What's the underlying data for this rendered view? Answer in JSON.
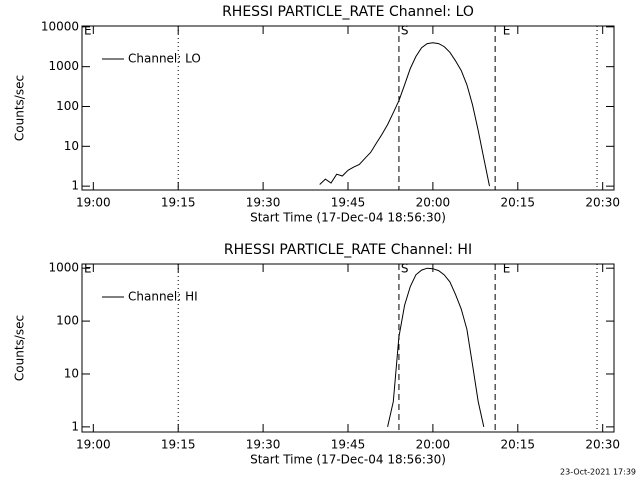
{
  "chart_data": [
    {
      "type": "line",
      "title": "RHESSI PARTICLE_RATE Channel: LO",
      "x_label": "Start Time (17-Dec-04 18:56:30)",
      "y_label": "Counts/sec",
      "log_y": true,
      "legend": "top-left",
      "xlim": [
        "18:58",
        "20:32"
      ],
      "xticks": [
        "19:00",
        "19:15",
        "19:30",
        "19:45",
        "20:00",
        "20:15",
        "20:30"
      ],
      "ylim": [
        0.8,
        10500
      ],
      "yticks": [
        1,
        10,
        100,
        1000,
        10000
      ],
      "x": [
        "19:40",
        "19:41",
        "19:42",
        "19:43",
        "19:44",
        "19:45",
        "19:46",
        "19:47",
        "19:48",
        "19:49",
        "19:50",
        "19:51",
        "19:52",
        "19:53",
        "19:54",
        "19:55",
        "19:56",
        "19:57",
        "19:58",
        "19:59",
        "20:00",
        "20:01",
        "20:02",
        "20:03",
        "20:04",
        "20:05",
        "20:06",
        "20:07",
        "20:08",
        "20:09",
        "20:10"
      ],
      "series": [
        {
          "name": "Channel: LO",
          "color": "#000000",
          "values": [
            1.1,
            1.5,
            1.2,
            2,
            1.8,
            2.5,
            3,
            3.5,
            5,
            7,
            12,
            20,
            35,
            70,
            140,
            350,
            900,
            1800,
            3000,
            3800,
            4000,
            3800,
            3200,
            2300,
            1400,
            800,
            350,
            110,
            25,
            5,
            1
          ]
        }
      ],
      "markers": [
        {
          "x": "19:15",
          "style": "dotted"
        },
        {
          "x": "19:54",
          "style": "dashed"
        },
        {
          "x": "20:11",
          "style": "dashed"
        },
        {
          "x": "20:29",
          "style": "dotted"
        }
      ],
      "annotations": [
        {
          "text": "E",
          "x": "18:58"
        },
        {
          "text": "S",
          "x": "19:54"
        },
        {
          "text": "E",
          "x": "20:12"
        }
      ]
    },
    {
      "type": "line",
      "title": "RHESSI PARTICLE_RATE Channel: HI",
      "x_label": "Start Time (17-Dec-04 18:56:30)",
      "y_label": "Counts/sec",
      "log_y": true,
      "legend": "top-left",
      "xlim": [
        "18:58",
        "20:32"
      ],
      "xticks": [
        "19:00",
        "19:15",
        "19:30",
        "19:45",
        "20:00",
        "20:15",
        "20:30"
      ],
      "ylim": [
        0.8,
        1200
      ],
      "yticks": [
        1,
        10,
        100,
        1000
      ],
      "x": [
        "19:52",
        "19:53",
        "19:54",
        "19:55",
        "19:56",
        "19:57",
        "19:58",
        "19:59",
        "20:00",
        "20:01",
        "20:02",
        "20:03",
        "20:04",
        "20:05",
        "20:06",
        "20:07",
        "20:08",
        "20:09"
      ],
      "series": [
        {
          "name": "Channel: HI",
          "color": "#000000",
          "values": [
            1,
            3,
            50,
            200,
            450,
            750,
            920,
            1000,
            980,
            900,
            750,
            550,
            320,
            170,
            70,
            15,
            3,
            1
          ]
        }
      ],
      "markers": [
        {
          "x": "19:15",
          "style": "dotted"
        },
        {
          "x": "19:54",
          "style": "dashed"
        },
        {
          "x": "20:11",
          "style": "dashed"
        },
        {
          "x": "20:29",
          "style": "dotted"
        }
      ],
      "annotations": [
        {
          "text": "E",
          "x": "18:58"
        },
        {
          "text": "S",
          "x": "19:54"
        },
        {
          "text": "E",
          "x": "20:12"
        }
      ]
    }
  ],
  "footer": "23-Oct-2021 17:39"
}
